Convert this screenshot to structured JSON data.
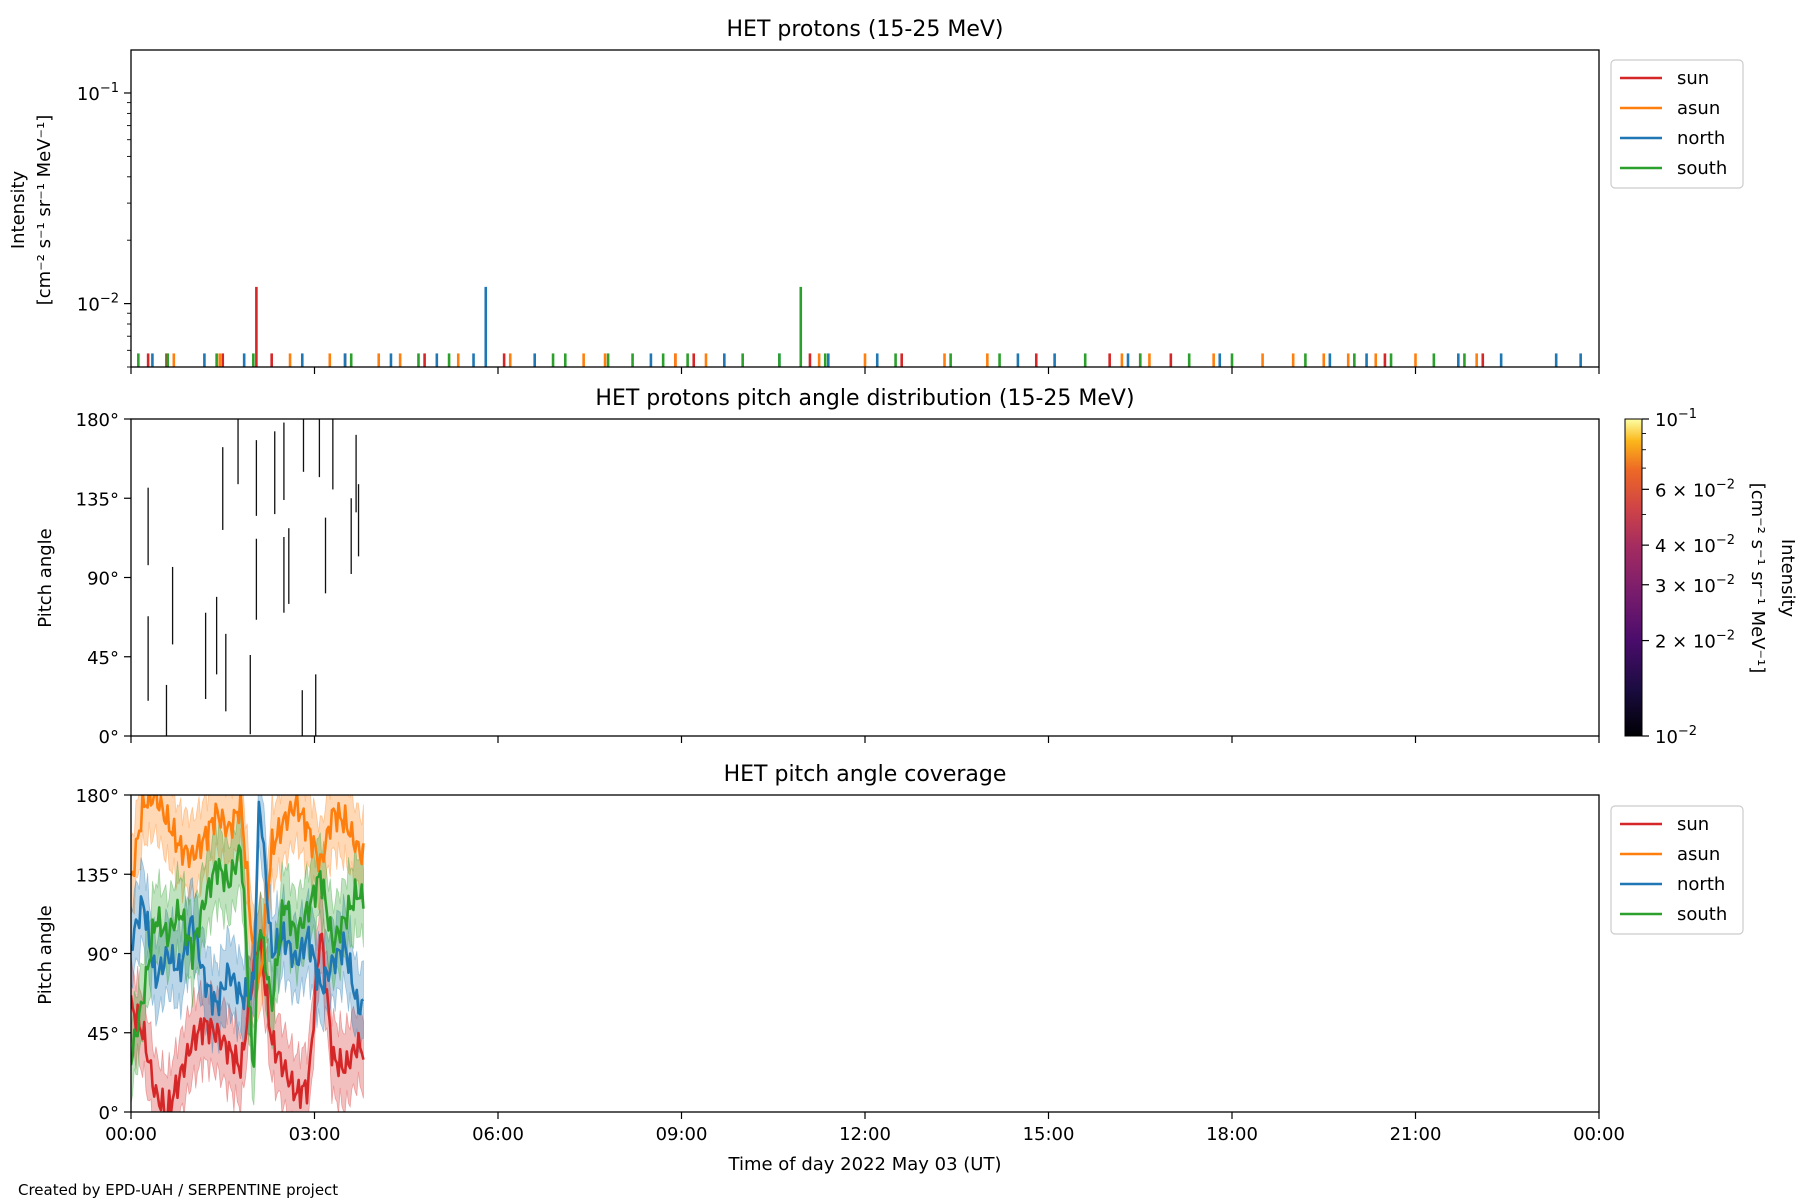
{
  "footer": "Created by EPD-UAH / SERPENTINE project",
  "xlabel": "Time of day 2022 May 03 (UT)",
  "x_tick_labels": [
    "00:00",
    "03:00",
    "06:00",
    "09:00",
    "12:00",
    "15:00",
    "18:00",
    "21:00",
    "00:00"
  ],
  "series_colors": {
    "sun": "#d62728",
    "asun": "#ff7f0e",
    "north": "#1f77b4",
    "south": "#2ca02c"
  },
  "legend": [
    "sun",
    "asun",
    "north",
    "south"
  ],
  "chart_data": [
    {
      "type": "line",
      "title": "HET protons (15-25 MeV)",
      "ylabel": "Intensity",
      "yunit": "[cm⁻² s⁻¹ sr⁻¹ MeV⁻¹]",
      "yscale": "log",
      "ylim": [
        0.005,
        0.16
      ],
      "y_tick_labels": [
        {
          "value": 0.1,
          "base": "10",
          "exp": "−1"
        },
        {
          "value": 0.01,
          "base": "10",
          "exp": "−2"
        }
      ],
      "xlim_hours": [
        0,
        24
      ],
      "legend_position": "outside-right",
      "baseline_value": 0.0058,
      "series": [
        {
          "name": "sun",
          "spikes": [
            {
              "t": 2.05,
              "value": 0.012
            }
          ],
          "baseline_times": [
            0.28,
            0.58,
            1.5,
            2.3,
            3.5,
            4.8,
            6.1,
            8.9,
            9.2,
            11.1,
            12.6,
            14.8,
            16.0,
            16.5,
            17.0,
            20.5,
            22.1
          ]
        },
        {
          "name": "asun",
          "baseline_times": [
            0.7,
            1.45,
            2.6,
            3.25,
            4.05,
            4.4,
            5.35,
            6.2,
            7.4,
            7.75,
            8.9,
            9.4,
            11.25,
            12.0,
            13.3,
            14.0,
            16.2,
            16.65,
            17.7,
            18.5,
            19.0,
            19.5,
            19.9,
            20.35,
            21.0,
            22.0
          ]
        },
        {
          "name": "north",
          "spikes": [
            {
              "t": 5.8,
              "value": 0.012
            }
          ],
          "baseline_times": [
            0.35,
            1.2,
            1.85,
            2.8,
            3.5,
            4.25,
            5.0,
            5.6,
            6.6,
            8.5,
            9.7,
            10.6,
            11.4,
            12.2,
            14.5,
            15.1,
            16.3,
            17.8,
            19.6,
            20.2,
            21.7,
            22.4,
            23.3,
            23.7
          ]
        },
        {
          "name": "south",
          "spikes": [
            {
              "t": 10.95,
              "value": 0.012
            }
          ],
          "baseline_times": [
            0.12,
            0.6,
            1.4,
            2.0,
            3.6,
            4.7,
            5.2,
            6.9,
            7.1,
            7.8,
            8.2,
            8.7,
            9.1,
            10.0,
            10.6,
            11.35,
            12.5,
            13.4,
            14.2,
            15.6,
            16.5,
            17.3,
            18.0,
            19.2,
            20.0,
            20.6,
            21.3,
            21.8
          ]
        }
      ]
    },
    {
      "type": "heatmap",
      "title": "HET protons pitch angle distribution (15-25 MeV)",
      "ylabel": "Pitch angle",
      "ylim": [
        0,
        180
      ],
      "y_tick_labels": [
        "0°",
        "45°",
        "90°",
        "135°",
        "180°"
      ],
      "y_tick_values": [
        0,
        45,
        90,
        135,
        180
      ],
      "xlim_hours": [
        0,
        24
      ],
      "colorbar": {
        "label": "Intensity",
        "unit": "[cm⁻² s⁻¹ sr⁻¹ MeV⁻¹]",
        "scale": "log",
        "range": [
          0.01,
          0.1
        ],
        "colormap": "inferno",
        "tick_labels": [
          {
            "value": 0.1,
            "text": "10",
            "exp": "−1"
          },
          {
            "value": 0.06,
            "text": "6 × 10",
            "exp": "−2"
          },
          {
            "value": 0.04,
            "text": "4 × 10",
            "exp": "−2"
          },
          {
            "value": 0.03,
            "text": "3 × 10",
            "exp": "−2"
          },
          {
            "value": 0.02,
            "text": "2 × 10",
            "exp": "−2"
          },
          {
            "value": 0.01,
            "text": "10",
            "exp": "−2"
          }
        ]
      },
      "segments": [
        {
          "t": 0.28,
          "a0": 20,
          "a1": 68
        },
        {
          "t": 0.28,
          "a0": 97,
          "a1": 141
        },
        {
          "t": 0.58,
          "a0": 0,
          "a1": 29
        },
        {
          "t": 0.68,
          "a0": 52,
          "a1": 96
        },
        {
          "t": 1.22,
          "a0": 21,
          "a1": 70
        },
        {
          "t": 1.4,
          "a0": 35,
          "a1": 79
        },
        {
          "t": 1.5,
          "a0": 117,
          "a1": 164
        },
        {
          "t": 1.55,
          "a0": 14,
          "a1": 58
        },
        {
          "t": 1.75,
          "a0": 143,
          "a1": 180
        },
        {
          "t": 1.95,
          "a0": 1,
          "a1": 46
        },
        {
          "t": 2.05,
          "a0": 66,
          "a1": 112
        },
        {
          "t": 2.05,
          "a0": 125,
          "a1": 168
        },
        {
          "t": 2.35,
          "a0": 126,
          "a1": 173
        },
        {
          "t": 2.5,
          "a0": 70,
          "a1": 113
        },
        {
          "t": 2.58,
          "a0": 75,
          "a1": 118
        },
        {
          "t": 2.5,
          "a0": 134,
          "a1": 178
        },
        {
          "t": 2.8,
          "a0": 0,
          "a1": 26
        },
        {
          "t": 2.82,
          "a0": 150,
          "a1": 180
        },
        {
          "t": 3.02,
          "a0": 0,
          "a1": 35
        },
        {
          "t": 3.08,
          "a0": 147,
          "a1": 180
        },
        {
          "t": 3.18,
          "a0": 81,
          "a1": 124
        },
        {
          "t": 3.3,
          "a0": 140,
          "a1": 180
        },
        {
          "t": 3.6,
          "a0": 92,
          "a1": 135
        },
        {
          "t": 3.68,
          "a0": 127,
          "a1": 171
        },
        {
          "t": 3.72,
          "a0": 102,
          "a1": 143
        }
      ]
    },
    {
      "type": "line",
      "title": "HET pitch angle coverage",
      "ylabel": "Pitch angle",
      "ylim": [
        0,
        180
      ],
      "y_tick_labels": [
        "0°",
        "45°",
        "90°",
        "135°",
        "180°"
      ],
      "y_tick_values": [
        0,
        45,
        90,
        135,
        180
      ],
      "xlim_hours": [
        0,
        24
      ],
      "data_end_hours": 3.8,
      "band_halfwidth_deg": 22,
      "legend_position": "outside-right",
      "series": [
        {
          "name": "sun",
          "x": [
            0,
            0.2,
            0.4,
            0.6,
            0.8,
            1.0,
            1.2,
            1.4,
            1.6,
            1.8,
            2.0,
            2.1,
            2.3,
            2.5,
            2.7,
            2.9,
            3.1,
            3.3,
            3.5,
            3.7,
            3.8
          ],
          "y": [
            60,
            45,
            10,
            0,
            20,
            40,
            50,
            45,
            35,
            25,
            80,
            100,
            40,
            25,
            10,
            15,
            105,
            30,
            25,
            38,
            35
          ]
        },
        {
          "name": "asun",
          "x": [
            0,
            0.2,
            0.4,
            0.6,
            0.8,
            1.0,
            1.2,
            1.4,
            1.6,
            1.8,
            2.0,
            2.1,
            2.3,
            2.5,
            2.7,
            2.9,
            3.1,
            3.3,
            3.5,
            3.7,
            3.8
          ],
          "y": [
            130,
            175,
            180,
            165,
            150,
            145,
            155,
            170,
            160,
            175,
            90,
            70,
            150,
            165,
            175,
            160,
            140,
            170,
            165,
            150,
            145
          ]
        },
        {
          "name": "north",
          "x": [
            0,
            0.2,
            0.4,
            0.6,
            0.8,
            1.0,
            1.2,
            1.4,
            1.6,
            1.8,
            2.0,
            2.1,
            2.3,
            2.5,
            2.7,
            2.9,
            3.1,
            3.3,
            3.5,
            3.7,
            3.8
          ],
          "y": [
            95,
            120,
            75,
            90,
            80,
            110,
            75,
            60,
            80,
            65,
            70,
            180,
            90,
            100,
            85,
            100,
            70,
            85,
            95,
            60,
            60
          ]
        },
        {
          "name": "south",
          "x": [
            0,
            0.2,
            0.4,
            0.6,
            0.8,
            1.0,
            1.2,
            1.4,
            1.6,
            1.8,
            2.0,
            2.1,
            2.3,
            2.5,
            2.7,
            2.9,
            3.1,
            3.3,
            3.5,
            3.7,
            3.8
          ],
          "y": [
            30,
            65,
            110,
            100,
            115,
            90,
            120,
            140,
            130,
            150,
            20,
            110,
            60,
            120,
            100,
            115,
            135,
            95,
            110,
            125,
            120
          ]
        }
      ]
    }
  ]
}
